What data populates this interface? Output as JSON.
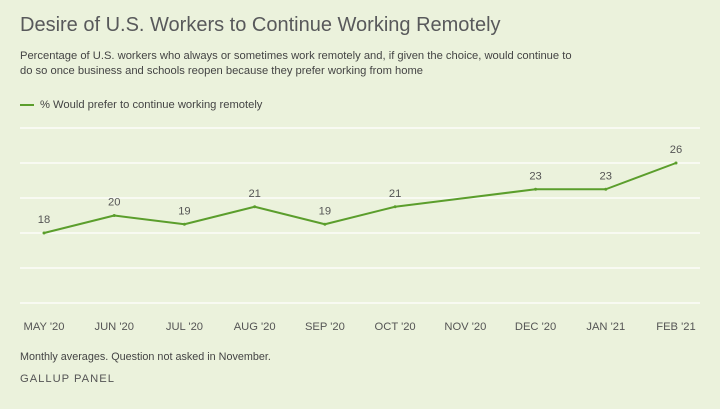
{
  "header": {
    "title": "Desire of U.S. Workers to Continue Working Remotely",
    "subtitle": "Percentage of U.S. workers who always or sometimes work remotely and, if given the choice, would continue to do so once business and schools reopen because they prefer working from home"
  },
  "legend": {
    "label": "% Would prefer to continue working remotely"
  },
  "footer": {
    "note": "Monthly averages. Question not asked in November.",
    "source": "GALLUP PANEL"
  },
  "colors": {
    "line": "#5b9e2c",
    "grid": "#ffffff",
    "background": "#ebf2dc"
  },
  "chart_data": {
    "type": "line",
    "title": "Desire of U.S. Workers to Continue Working Remotely",
    "xlabel": "",
    "ylabel": "",
    "categories": [
      "MAY '20",
      "JUN '20",
      "JUL '20",
      "AUG '20",
      "SEP '20",
      "OCT '20",
      "NOV '20",
      "DEC '20",
      "JAN '21",
      "FEB '21"
    ],
    "series": [
      {
        "name": "% Would prefer to continue working remotely",
        "values": [
          18,
          20,
          19,
          21,
          19,
          21,
          null,
          23,
          23,
          26
        ],
        "data_labels": [
          "18",
          "20",
          "19",
          "21",
          "19",
          "21",
          "",
          "23",
          "23",
          "26"
        ]
      }
    ],
    "ylim": [
      10,
      30
    ],
    "grid": true,
    "legend_position": "top-left"
  }
}
